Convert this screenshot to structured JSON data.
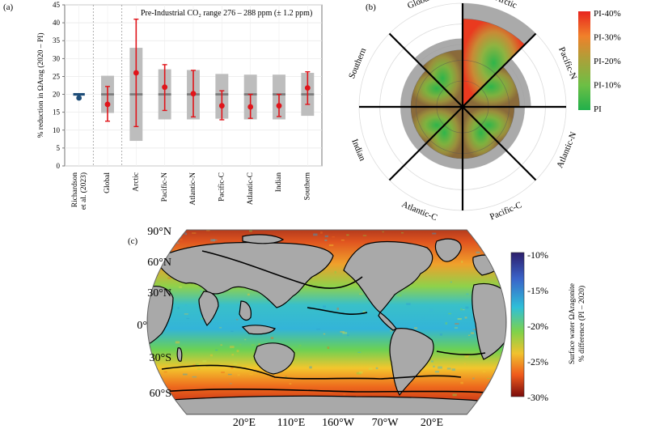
{
  "panels": {
    "a": "(a)",
    "b": "(b)",
    "c": "(c)"
  },
  "chart_data": [
    {
      "type": "bar",
      "panel": "(a)",
      "annotation": "Pre-Industrial CO₂ range 276 – 288 ppm (± 1.2 ppm)",
      "ylabel": "% reduction in ΩArag (2020 – PI)",
      "ylim": [
        0,
        45
      ],
      "yticks": [
        0,
        5,
        10,
        15,
        20,
        25,
        30,
        35,
        40,
        45
      ],
      "categories": [
        "Richardson et al. (2023)",
        "Global",
        "Arctic",
        "Pacific-N",
        "Atlantic-N",
        "Pacific-C",
        "Atlantic-C",
        "Indian",
        "Southern"
      ],
      "series": [
        {
          "kind": "range-box",
          "values": [
            null,
            [
              14.8,
              25.2
            ],
            [
              7,
              33
            ],
            [
              13,
              27
            ],
            [
              13,
              26.8
            ],
            [
              13.2,
              25.7
            ],
            [
              13,
              25.5
            ],
            [
              13,
              25.5
            ],
            [
              14,
              26
            ]
          ]
        },
        {
          "kind": "median-line",
          "values": [
            20,
            20,
            20,
            20,
            20,
            20,
            20,
            20,
            20
          ]
        },
        {
          "kind": "mean",
          "values": [
            19,
            17.2,
            26,
            22,
            20.2,
            16.8,
            16.5,
            16.8,
            21.8
          ]
        },
        {
          "kind": "error",
          "values": [
            null,
            [
              12.5,
              22.2
            ],
            [
              11,
              41
            ],
            [
              15.5,
              28.3
            ],
            [
              13.7,
              26.7
            ],
            [
              12.9,
              21
            ],
            [
              13.3,
              20
            ],
            [
              13.8,
              20
            ],
            [
              17.2,
              26.3
            ]
          ]
        }
      ],
      "colors": {
        "box": "#bdbdbd",
        "median": "#7a7a7a",
        "point": "#e0141a",
        "ref_point": "#1f4e79"
      }
    },
    {
      "type": "polar-area",
      "panel": "(b)",
      "sectors": [
        "Arctic",
        "Pacific-N",
        "Atlantic-N",
        "Pacific-C",
        "Atlantic-C",
        "Indian",
        "Southern",
        "Global"
      ],
      "values_pct": [
        34,
        22,
        20,
        20,
        20,
        20,
        20,
        22
      ],
      "colorbar": {
        "ticks": [
          "PI-40%",
          "PI-30%",
          "PI-20%",
          "PI-10%",
          "PI"
        ],
        "colors": [
          "#e8251e",
          "#f0802a",
          "#a8a23a",
          "#6cbf45",
          "#21b04b"
        ]
      }
    },
    {
      "type": "heatmap",
      "panel": "(c)",
      "lat_labels": [
        "90°N",
        "60°N",
        "30°N",
        "0°",
        "30°S",
        "60°S"
      ],
      "lon_labels": [
        "20°E",
        "110°E",
        "160°W",
        "70°W",
        "20°E"
      ],
      "colorbar": {
        "ticks": [
          "-10%",
          "-15%",
          "-20%",
          "-25%",
          "-30%"
        ],
        "label_line1": "Surface water ΩAragonite",
        "label_line2": "% difference (PI – 2020)"
      }
    }
  ]
}
